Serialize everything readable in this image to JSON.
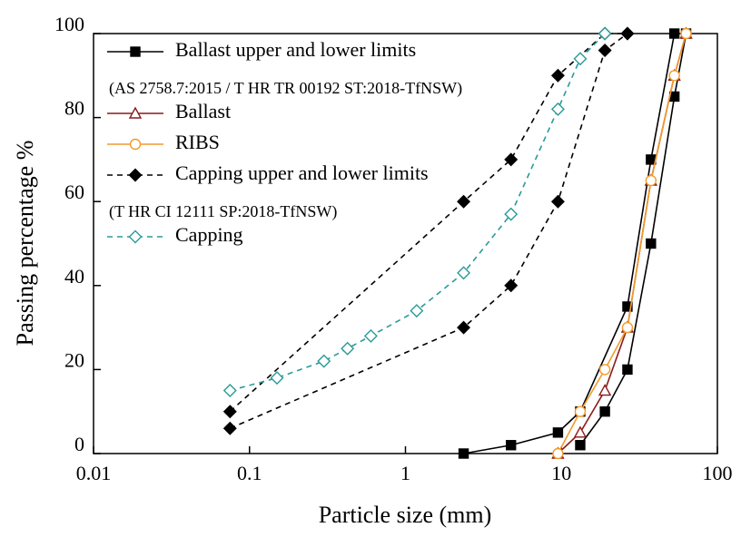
{
  "chart_data": {
    "type": "line",
    "x_label": "Particle size (mm)",
    "y_label": "Passing percentage %",
    "xlog": true,
    "xlim": [
      0.01,
      100
    ],
    "xticks": [
      0.01,
      0.1,
      1,
      10,
      100
    ],
    "ylim": [
      0,
      100
    ],
    "yticks": [
      0,
      20,
      40,
      60,
      80,
      100
    ],
    "series": [
      {
        "name": "Ballast upper and lower limits",
        "note": "(AS 2758.7:2015 / T HR TR 00192 ST:2018-TfNSW)",
        "color": "#000000",
        "marker": "square",
        "filled": true,
        "dashed": false,
        "x": [
          2.36,
          4.75,
          9.5,
          13.2,
          26.5,
          37.5,
          53
        ],
        "values": [
          0,
          2,
          5,
          10,
          35,
          70,
          100
        ]
      },
      {
        "color": "#000000",
        "marker": "square",
        "filled": true,
        "dashed": false,
        "x": [
          13.2,
          19,
          26.5,
          37.5,
          53,
          63
        ],
        "values": [
          2,
          10,
          20,
          50,
          85,
          100
        ]
      },
      {
        "name": "Ballast",
        "color": "#8b1a1a",
        "marker": "triangle",
        "filled": false,
        "dashed": false,
        "x": [
          9.5,
          13.2,
          19,
          26.5,
          37.5,
          53,
          63
        ],
        "values": [
          0,
          5,
          15,
          30,
          65,
          90,
          100
        ]
      },
      {
        "name": "RIBS",
        "color": "#f39a2b",
        "marker": "circle",
        "filled": false,
        "dashed": false,
        "x": [
          9.5,
          13.2,
          19,
          26.5,
          37.5,
          53,
          63
        ],
        "values": [
          0,
          10,
          20,
          30,
          65,
          90,
          100
        ]
      },
      {
        "name": "Capping upper and lower limits",
        "note": "(T HR CI 12111 SP:2018-TfNSW)",
        "color": "#000000",
        "marker": "diamond",
        "filled": true,
        "dashed": true,
        "x": [
          0.075,
          2.36,
          4.75,
          9.5,
          19,
          26.5
        ],
        "values": [
          10,
          60,
          70,
          90,
          100,
          100
        ]
      },
      {
        "color": "#000000",
        "marker": "diamond",
        "filled": true,
        "dashed": true,
        "x": [
          0.075,
          2.36,
          4.75,
          9.5,
          19,
          26.5
        ],
        "values": [
          6,
          30,
          40,
          60,
          96,
          100
        ]
      },
      {
        "name": "Capping",
        "color": "#2a9a9a",
        "marker": "diamond",
        "filled": false,
        "dashed": true,
        "x": [
          0.075,
          0.15,
          0.3,
          0.425,
          0.6,
          1.18,
          2.36,
          4.75,
          9.5,
          13.2,
          19
        ],
        "values": [
          15,
          18,
          22,
          25,
          28,
          34,
          43,
          57,
          82,
          94,
          100
        ]
      }
    ]
  }
}
